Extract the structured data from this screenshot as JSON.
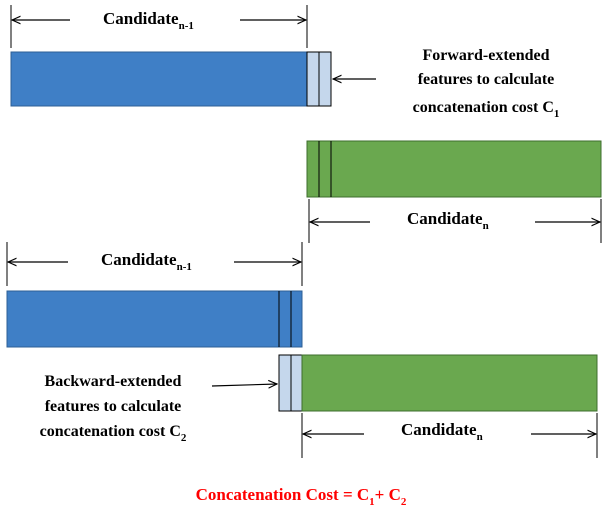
{
  "top_block": {
    "candidate_prev": {
      "base": "Candidate",
      "sub": "n-1"
    },
    "candidate_next": {
      "base": "Candidate",
      "sub": "n"
    },
    "annotation": {
      "line1": "Forward-extended",
      "line2": "features to calculate",
      "line3_base": "concatenation cost C",
      "line3_sub": "1"
    }
  },
  "bottom_block": {
    "candidate_prev": {
      "base": "Candidate",
      "sub": "n-1"
    },
    "candidate_next": {
      "base": "Candidate",
      "sub": "n"
    },
    "annotation": {
      "line1": "Backward-extended",
      "line2": "features to calculate",
      "line3_base": "concatenation cost C",
      "line3_sub": "2"
    }
  },
  "formula": {
    "prefix": "Concatenation Cost = C",
    "sub1": "1",
    "plus": "+ C",
    "sub2": "2",
    "color": "#ff0000"
  },
  "colors": {
    "candidate_prev_fill": "#3f7fc6",
    "candidate_next_fill": "#6aa84f",
    "extended_feature_fill": "#c5d7ec"
  }
}
